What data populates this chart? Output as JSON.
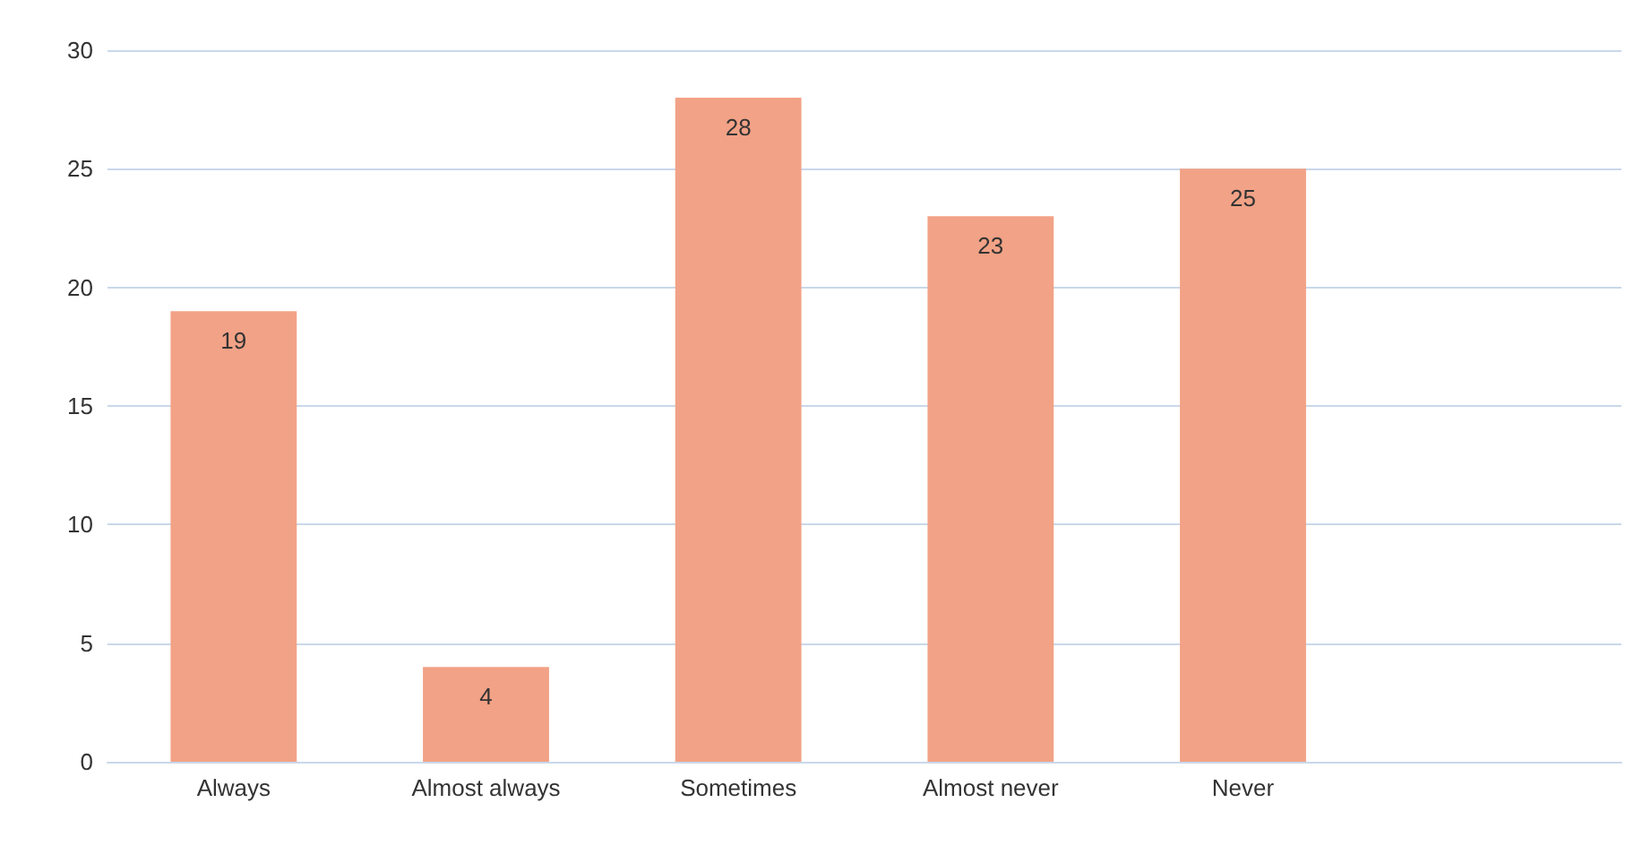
{
  "chart_data": {
    "type": "bar",
    "categories": [
      "Always",
      "Almost always",
      "Sometimes",
      "Almost never",
      "Never",
      null
    ],
    "values": [
      19,
      4,
      28,
      23,
      25,
      null
    ],
    "color": "#f2a286",
    "ylim": [
      0,
      30
    ],
    "yticks": [
      0,
      5,
      10,
      15,
      20,
      25,
      30
    ],
    "grid": "y",
    "data_labels": true
  }
}
